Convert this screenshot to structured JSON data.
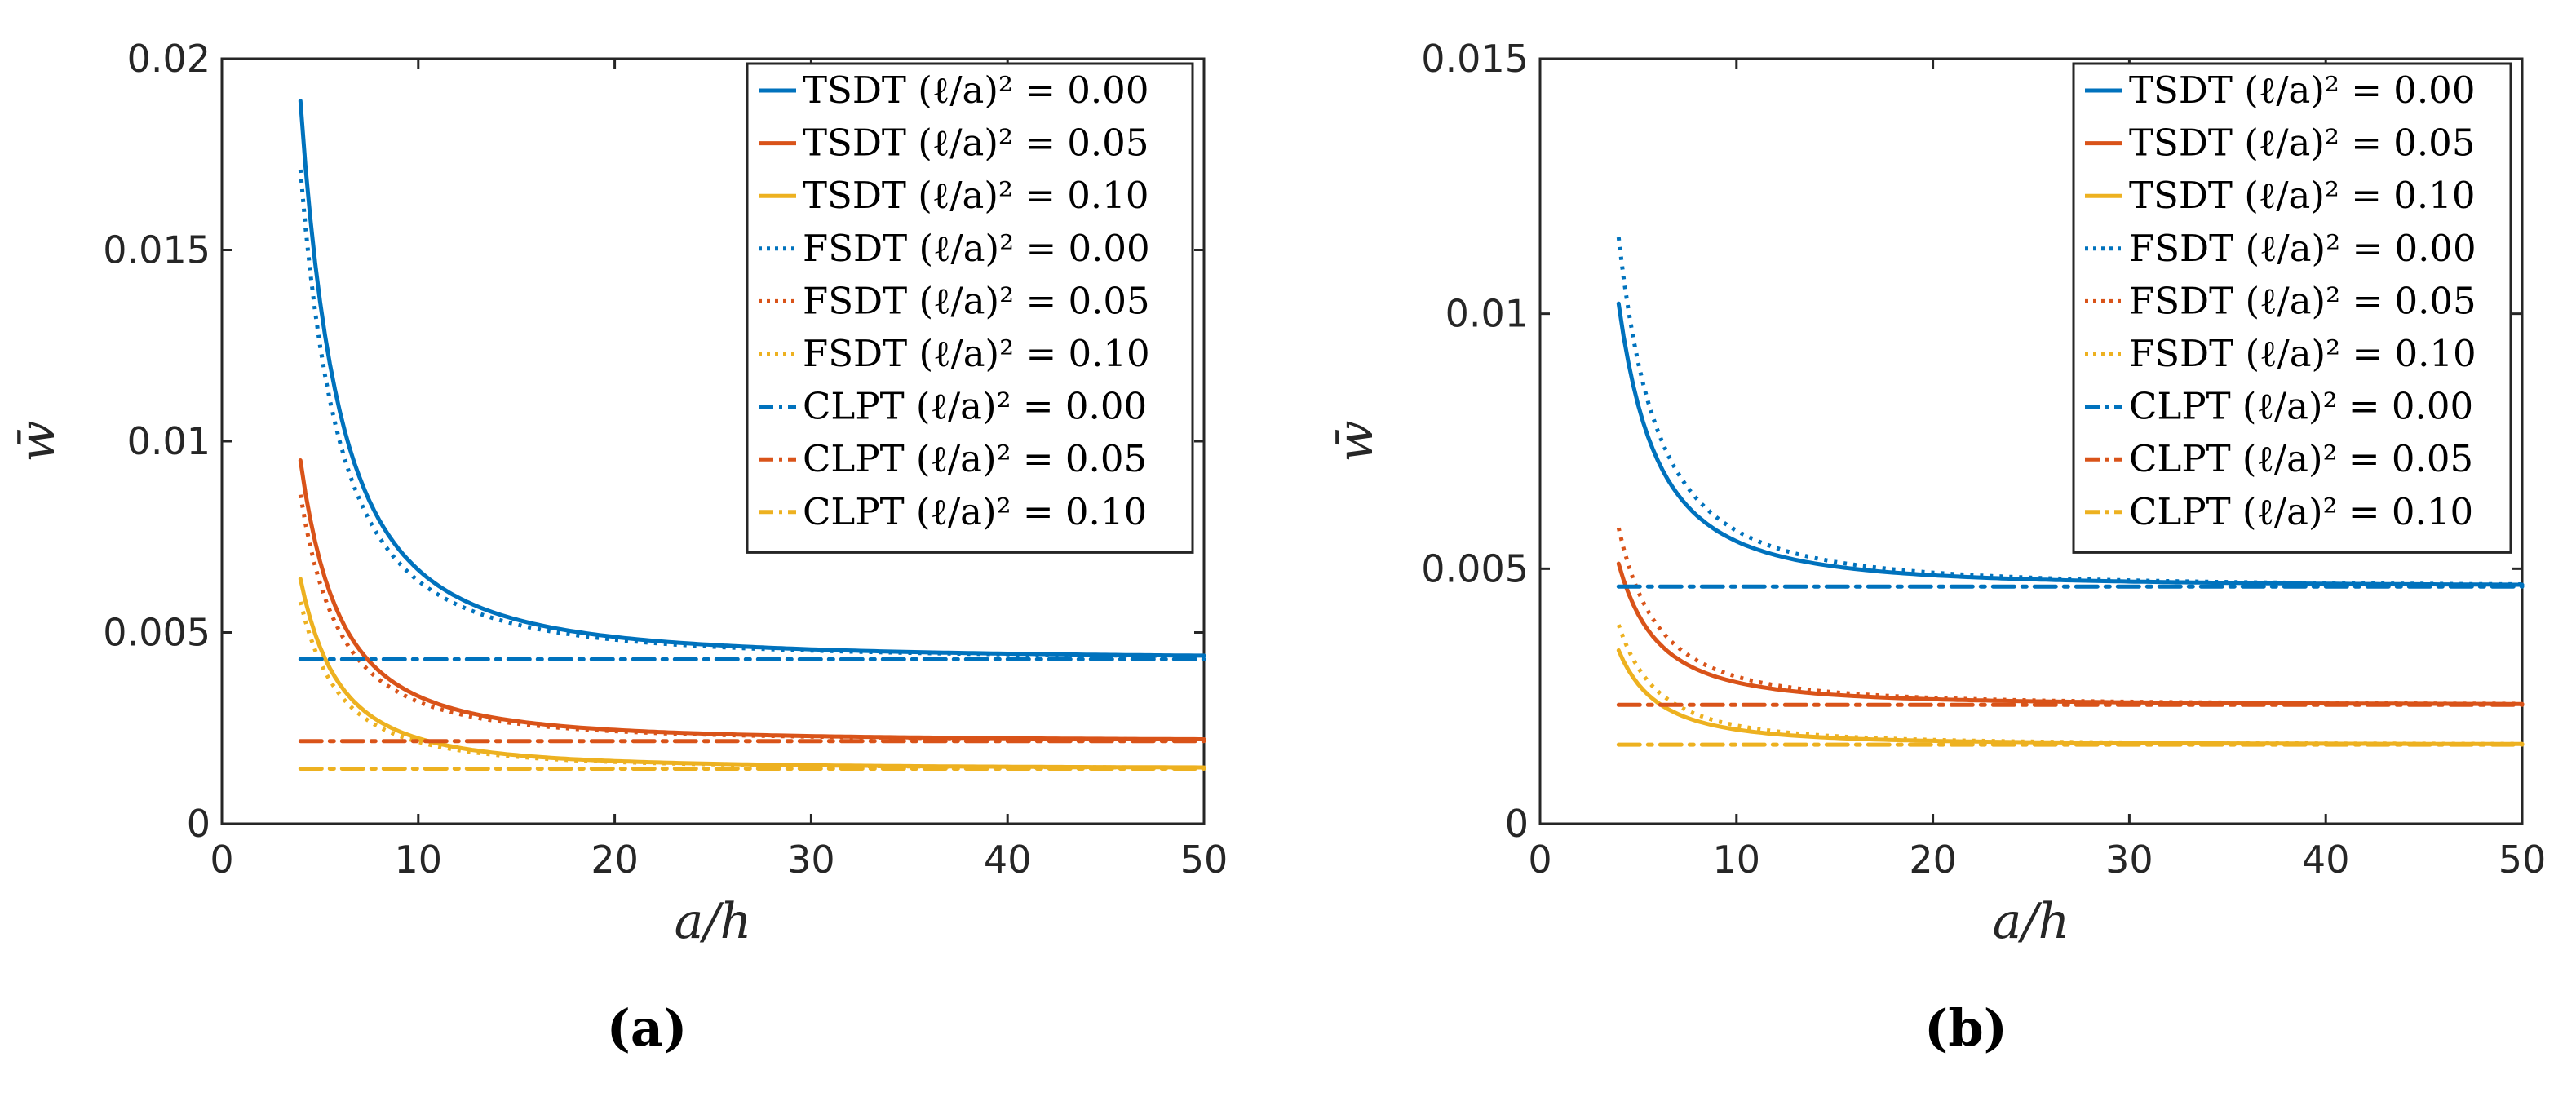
{
  "chart_data": [
    {
      "type": "line",
      "caption": "(a)",
      "xlabel": "a/h",
      "ylabel": "w̄",
      "xlim": [
        0,
        50
      ],
      "ylim": [
        0,
        0.02
      ],
      "xticks": [
        0,
        10,
        20,
        30,
        40,
        50
      ],
      "yticks": [
        0,
        0.005,
        0.01,
        0.015,
        0.02
      ],
      "xtick_labels": [
        "0",
        "10",
        "20",
        "30",
        "40",
        "50"
      ],
      "ytick_labels": [
        "0",
        "0.005",
        "0.01",
        "0.015",
        "0.02"
      ],
      "grid": false,
      "legend_position": "top-right",
      "series": [
        {
          "name": "TSDT (ℓ/a)² = 0.00",
          "color": "#0072BD",
          "style": "solid",
          "kind": "decay",
          "x_start": 4,
          "y_start": 0.0189,
          "y_inf": 0.0043,
          "x_end": 50,
          "y_end": 0.00437
        },
        {
          "name": "TSDT (ℓ/a)² = 0.05",
          "color": "#D95319",
          "style": "solid",
          "kind": "decay",
          "x_start": 4,
          "y_start": 0.0095,
          "y_inf": 0.00216,
          "x_end": 50,
          "y_end": 0.0022
        },
        {
          "name": "TSDT (ℓ/a)² = 0.10",
          "color": "#EDB120",
          "style": "solid",
          "kind": "decay",
          "x_start": 4,
          "y_start": 0.0064,
          "y_inf": 0.00144,
          "x_end": 50,
          "y_end": 0.00148
        },
        {
          "name": "FSDT (ℓ/a)² = 0.00",
          "color": "#0072BD",
          "style": "dotted",
          "kind": "decay",
          "x_start": 4,
          "y_start": 0.0171,
          "y_inf": 0.0043,
          "x_end": 50,
          "y_end": 0.00432
        },
        {
          "name": "FSDT (ℓ/a)² = 0.05",
          "color": "#D95319",
          "style": "dotted",
          "kind": "decay",
          "x_start": 4,
          "y_start": 0.0086,
          "y_inf": 0.00216,
          "x_end": 50,
          "y_end": 0.00217
        },
        {
          "name": "FSDT (ℓ/a)² = 0.10",
          "color": "#EDB120",
          "style": "dotted",
          "kind": "decay",
          "x_start": 4,
          "y_start": 0.0058,
          "y_inf": 0.00144,
          "x_end": 50,
          "y_end": 0.00145
        },
        {
          "name": "CLPT (ℓ/a)² = 0.00",
          "color": "#0072BD",
          "style": "dashdot",
          "kind": "constant",
          "x_start": 4,
          "y_start": 0.0043,
          "x_end": 50,
          "y_end": 0.0043
        },
        {
          "name": "CLPT (ℓ/a)² = 0.05",
          "color": "#D95319",
          "style": "dashdot",
          "kind": "constant",
          "x_start": 4,
          "y_start": 0.00216,
          "x_end": 50,
          "y_end": 0.00216
        },
        {
          "name": "CLPT (ℓ/a)² = 0.10",
          "color": "#EDB120",
          "style": "dashdot",
          "kind": "constant",
          "x_start": 4,
          "y_start": 0.00144,
          "x_end": 50,
          "y_end": 0.00144
        }
      ]
    },
    {
      "type": "line",
      "caption": "(b)",
      "xlabel": "a/h",
      "ylabel": "w̄",
      "xlim": [
        0,
        50
      ],
      "ylim": [
        0,
        0.015
      ],
      "xticks": [
        0,
        10,
        20,
        30,
        40,
        50
      ],
      "yticks": [
        0,
        0.005,
        0.01,
        0.015
      ],
      "xtick_labels": [
        "0",
        "10",
        "20",
        "30",
        "40",
        "50"
      ],
      "ytick_labels": [
        "0",
        "0.005",
        "0.01",
        "0.015"
      ],
      "grid": false,
      "legend_position": "top-right",
      "series": [
        {
          "name": "TSDT (ℓ/a)² = 0.00",
          "color": "#0072BD",
          "style": "solid",
          "kind": "decay",
          "x_start": 4,
          "y_start": 0.0102,
          "y_inf": 0.00465,
          "x_end": 50,
          "y_end": 0.0047
        },
        {
          "name": "TSDT (ℓ/a)² = 0.05",
          "color": "#D95319",
          "style": "solid",
          "kind": "decay",
          "x_start": 4,
          "y_start": 0.0051,
          "y_inf": 0.00233,
          "x_end": 50,
          "y_end": 0.00235
        },
        {
          "name": "TSDT (ℓ/a)² = 0.10",
          "color": "#EDB120",
          "style": "solid",
          "kind": "decay",
          "x_start": 4,
          "y_start": 0.0034,
          "y_inf": 0.00155,
          "x_end": 50,
          "y_end": 0.00157
        },
        {
          "name": "FSDT (ℓ/a)² = 0.00",
          "color": "#0072BD",
          "style": "dotted",
          "kind": "decay",
          "x_start": 4,
          "y_start": 0.0115,
          "y_inf": 0.00465,
          "x_end": 50,
          "y_end": 0.00471
        },
        {
          "name": "FSDT (ℓ/a)² = 0.05",
          "color": "#D95319",
          "style": "dotted",
          "kind": "decay",
          "x_start": 4,
          "y_start": 0.0058,
          "y_inf": 0.00233,
          "x_end": 50,
          "y_end": 0.00236
        },
        {
          "name": "FSDT (ℓ/a)² = 0.10",
          "color": "#EDB120",
          "style": "dotted",
          "kind": "decay",
          "x_start": 4,
          "y_start": 0.0039,
          "y_inf": 0.00155,
          "x_end": 50,
          "y_end": 0.00157
        },
        {
          "name": "CLPT (ℓ/a)² = 0.00",
          "color": "#0072BD",
          "style": "dashdot",
          "kind": "constant",
          "x_start": 4,
          "y_start": 0.00465,
          "x_end": 50,
          "y_end": 0.00465
        },
        {
          "name": "CLPT (ℓ/a)² = 0.05",
          "color": "#D95319",
          "style": "dashdot",
          "kind": "constant",
          "x_start": 4,
          "y_start": 0.00233,
          "x_end": 50,
          "y_end": 0.00233
        },
        {
          "name": "CLPT (ℓ/a)² = 0.10",
          "color": "#EDB120",
          "style": "dashdot",
          "kind": "constant",
          "x_start": 4,
          "y_start": 0.00155,
          "x_end": 50,
          "y_end": 0.00155
        }
      ]
    }
  ]
}
